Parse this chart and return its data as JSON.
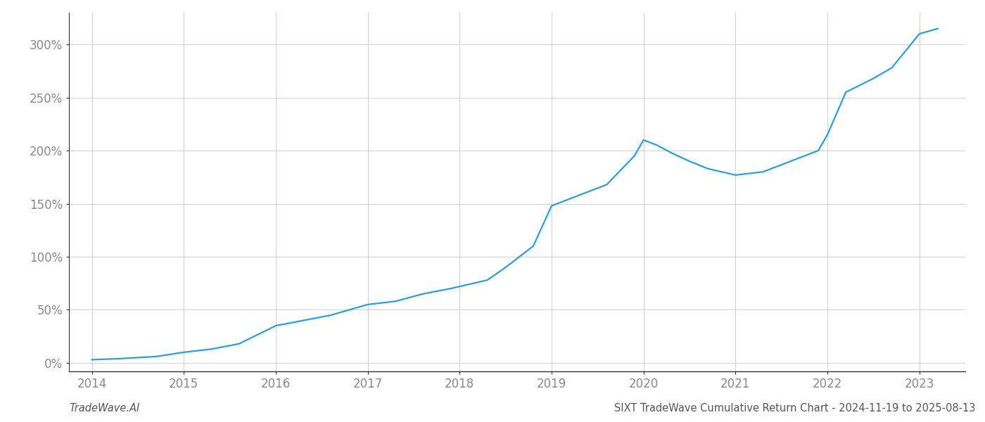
{
  "title": "SIXT TradeWave Cumulative Return Chart - 2024-11-19 to 2025-08-13",
  "left_label": "TradeWave.AI",
  "line_color": "#2e9fd4",
  "line_width": 1.6,
  "background_color": "#ffffff",
  "grid_color": "#d0d0d0",
  "x_values": [
    2014.0,
    2014.3,
    2014.7,
    2015.0,
    2015.3,
    2015.6,
    2016.0,
    2016.3,
    2016.6,
    2017.0,
    2017.3,
    2017.6,
    2017.9,
    2018.0,
    2018.3,
    2018.5,
    2018.8,
    2019.0,
    2019.3,
    2019.6,
    2019.9,
    2020.0,
    2020.15,
    2020.3,
    2020.5,
    2020.7,
    2021.0,
    2021.3,
    2021.6,
    2021.9,
    2022.0,
    2022.2,
    2022.5,
    2022.7,
    2023.0,
    2023.2
  ],
  "y_values": [
    3,
    4,
    6,
    10,
    13,
    18,
    35,
    40,
    45,
    55,
    58,
    65,
    70,
    72,
    78,
    90,
    110,
    148,
    158,
    168,
    195,
    210,
    205,
    198,
    190,
    183,
    177,
    180,
    190,
    200,
    215,
    255,
    268,
    278,
    310,
    315
  ],
  "xlim": [
    2013.75,
    2023.5
  ],
  "ylim": [
    -8,
    330
  ],
  "yticks": [
    0,
    50,
    100,
    150,
    200,
    250,
    300
  ],
  "xticks": [
    2014,
    2015,
    2016,
    2017,
    2018,
    2019,
    2020,
    2021,
    2022,
    2023
  ],
  "tick_fontsize": 12,
  "footer_fontsize": 10.5
}
